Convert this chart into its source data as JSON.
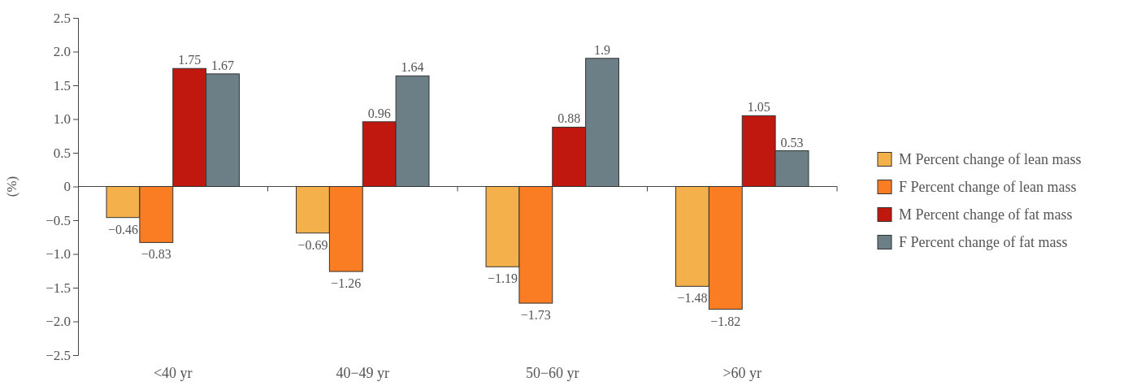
{
  "chart_data": {
    "type": "bar",
    "ylabel": "(%)",
    "categories": [
      "<40 yr",
      "40−49 yr",
      "50−60 yr",
      ">60 yr"
    ],
    "series": [
      {
        "name": "M Percent change of lean mass",
        "color": "#f4b04a",
        "values": [
          -0.46,
          -0.69,
          -1.19,
          -1.48
        ],
        "value_labels": [
          "−0.46",
          "−0.69",
          "−1.19",
          "−1.48"
        ]
      },
      {
        "name": "F Percent change of lean mass",
        "color": "#fb7d23",
        "values": [
          -0.83,
          -1.26,
          -1.73,
          -1.82
        ],
        "value_labels": [
          "−0.83",
          "−1.26",
          "−1.73",
          "−1.82"
        ]
      },
      {
        "name": "M Percent change of fat mass",
        "color": "#c0180f",
        "values": [
          1.75,
          0.96,
          0.88,
          1.05
        ],
        "value_labels": [
          "1.75",
          "0.96",
          "0.88",
          "1.05"
        ]
      },
      {
        "name": "F Percent change of fat mass",
        "color": "#6d7f86",
        "values": [
          1.67,
          1.64,
          1.9,
          0.53
        ],
        "value_labels": [
          "1.67",
          "1.64",
          "1.9",
          "0.53"
        ]
      }
    ],
    "ylim": [
      -2.5,
      2.5
    ],
    "yticks": [
      {
        "value": -2.5,
        "label": "−2.5"
      },
      {
        "value": -2,
        "label": "−2.0"
      },
      {
        "value": -1.5,
        "label": "−1.5"
      },
      {
        "value": -1,
        "label": "−1.0"
      },
      {
        "value": -0.5,
        "label": "−0.5"
      },
      0,
      0.5,
      {
        "value": 1,
        "label": "1.0"
      },
      1.5,
      {
        "value": 2,
        "label": "2.0"
      },
      2.5
    ],
    "legend": "right"
  }
}
